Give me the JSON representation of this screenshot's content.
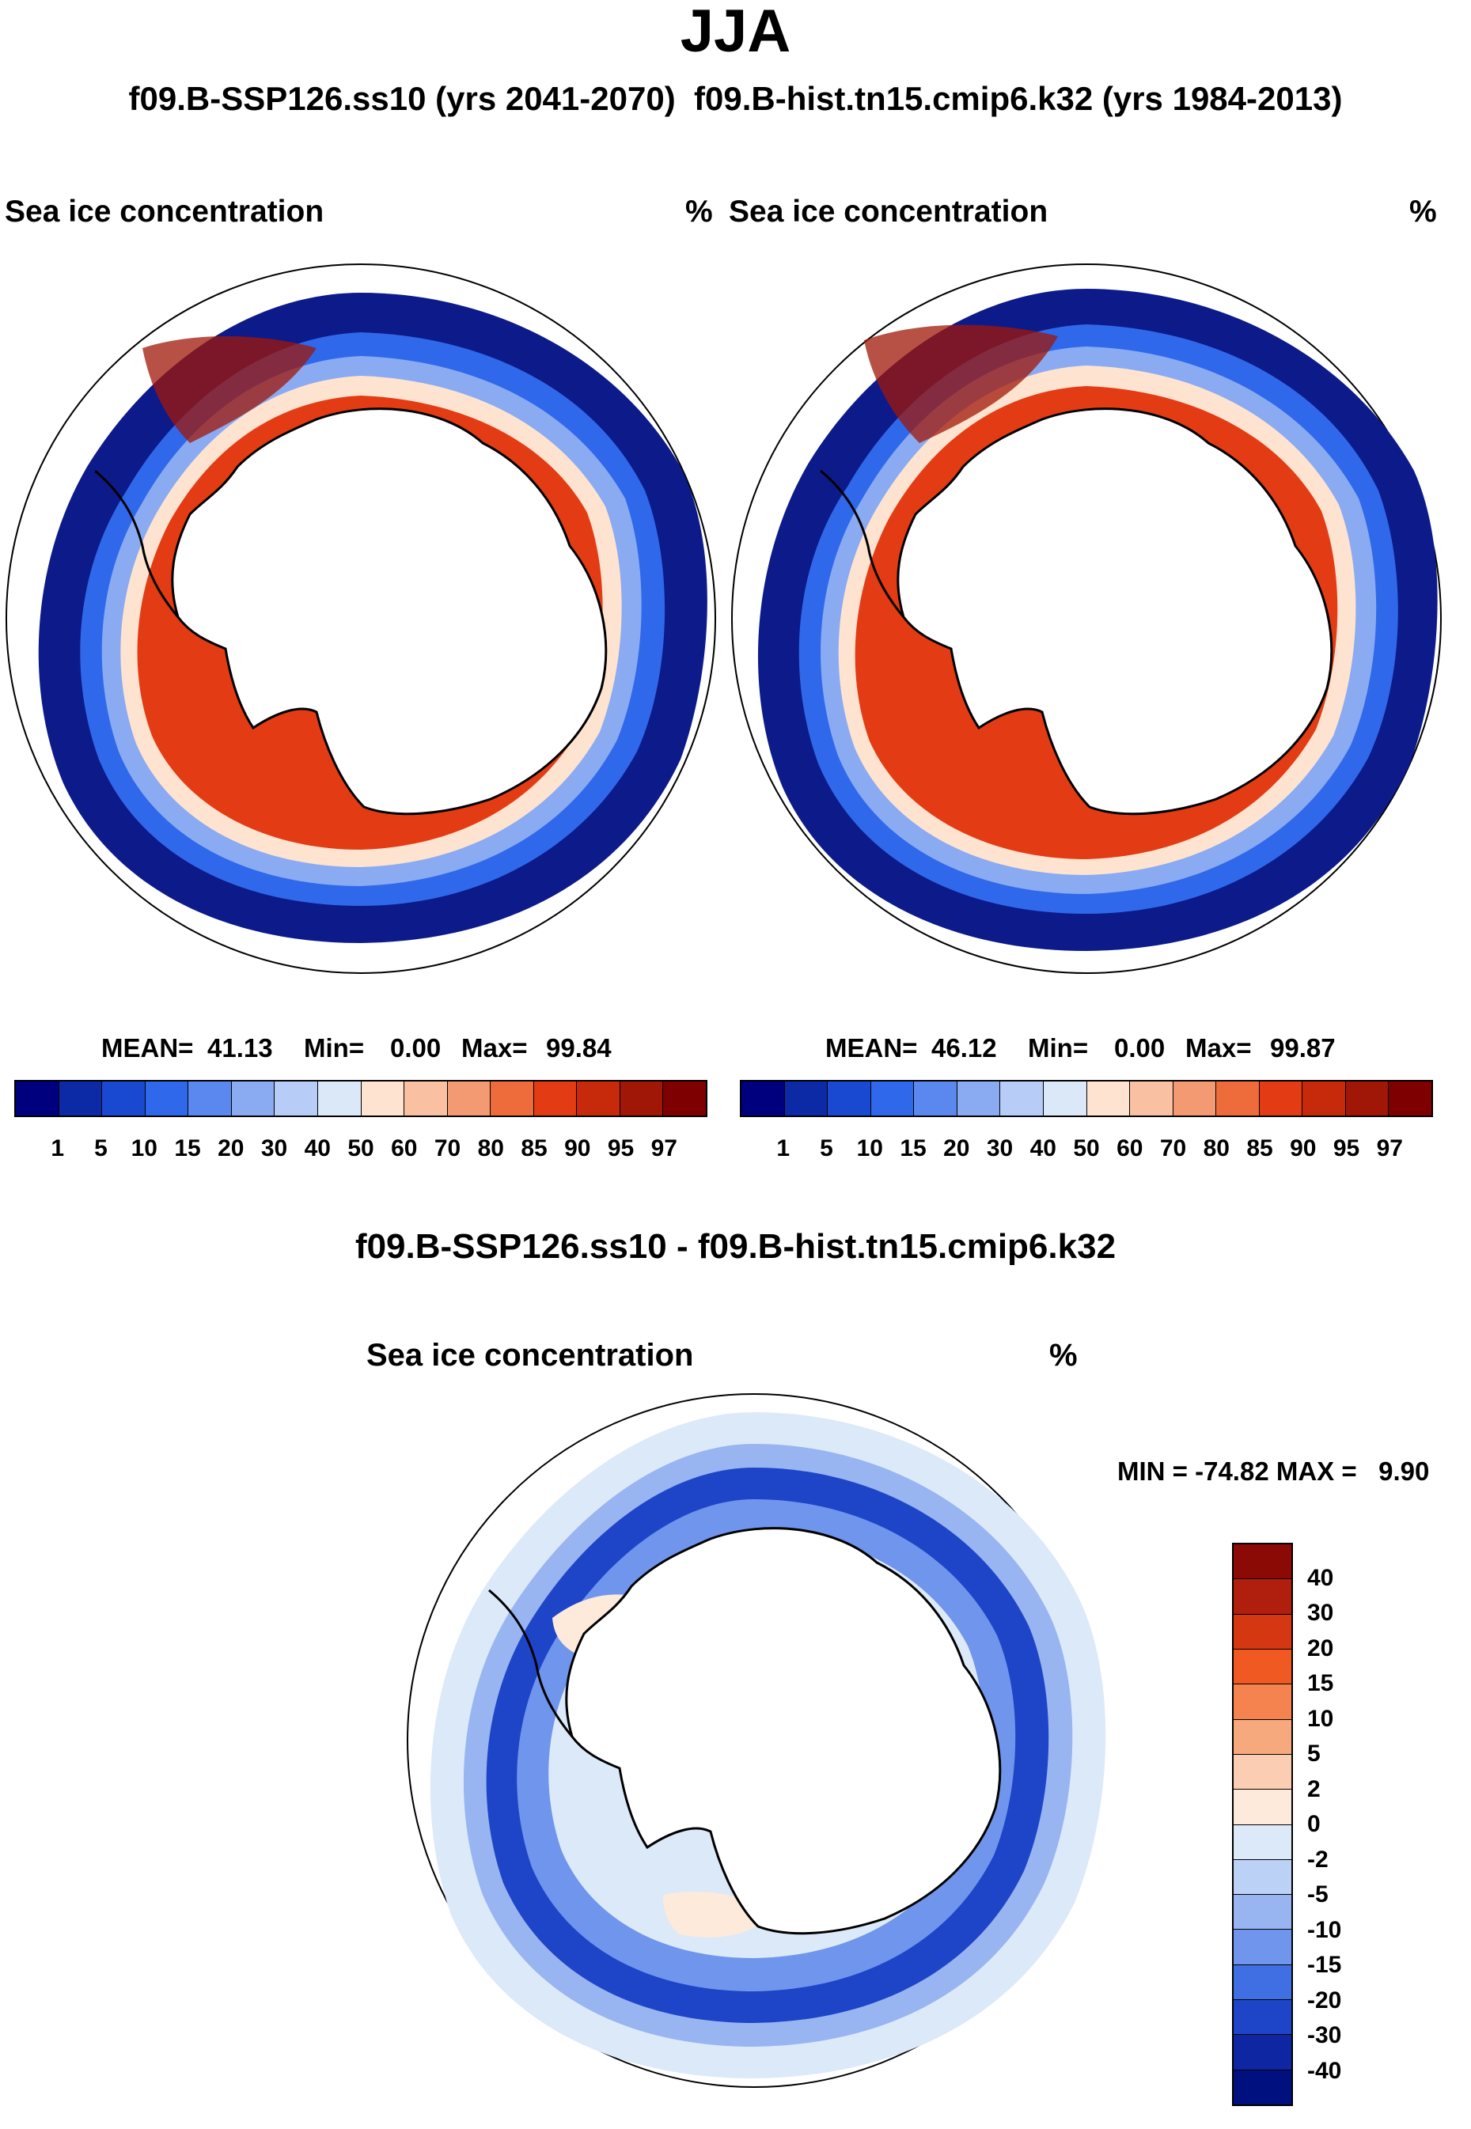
{
  "figure": {
    "season": "JJA",
    "subtitle": "f09.B-SSP126.ss10 (yrs 2041-2070)  f09.B-hist.tn15.cmip6.k32 (yrs 1984-2013)"
  },
  "chart_data": [
    {
      "type": "heatmap",
      "name": "case",
      "projection": "south-polar-stereographic",
      "title": "Sea ice concentration",
      "units": "%",
      "stats": {
        "mean_label": "MEAN=",
        "mean": "41.13",
        "min_label": "Min=",
        "min": "0.00",
        "max_label": "Max=",
        "max": "99.84"
      },
      "levels": [
        "1",
        "5",
        "10",
        "15",
        "20",
        "30",
        "40",
        "50",
        "60",
        "70",
        "80",
        "85",
        "90",
        "95",
        "97"
      ],
      "colors": [
        "#00007f",
        "#0d2aa6",
        "#1a49d1",
        "#2f68ea",
        "#5b88ee",
        "#8aaaf2",
        "#b7cdf7",
        "#dbe8f8",
        "#fde3d0",
        "#f9c0a1",
        "#f49a73",
        "#ee6b3c",
        "#e33c14",
        "#c72a0a",
        "#a01707",
        "#7f0000"
      ]
    },
    {
      "type": "heatmap",
      "name": "control",
      "projection": "south-polar-stereographic",
      "title": "Sea ice concentration",
      "units": "%",
      "stats": {
        "mean_label": "MEAN=",
        "mean": "46.12",
        "min_label": "Min=",
        "min": "0.00",
        "max_label": "Max=",
        "max": "99.87"
      },
      "levels": [
        "1",
        "5",
        "10",
        "15",
        "20",
        "30",
        "40",
        "50",
        "60",
        "70",
        "80",
        "85",
        "90",
        "95",
        "97"
      ],
      "colors": [
        "#00007f",
        "#0d2aa6",
        "#1a49d1",
        "#2f68ea",
        "#5b88ee",
        "#8aaaf2",
        "#b7cdf7",
        "#dbe8f8",
        "#fde3d0",
        "#f9c0a1",
        "#f49a73",
        "#ee6b3c",
        "#e33c14",
        "#c72a0a",
        "#a01707",
        "#7f0000"
      ]
    },
    {
      "type": "heatmap",
      "name": "difference",
      "projection": "south-polar-stereographic",
      "heading": "f09.B-SSP126.ss10 - f09.B-hist.tn15.cmip6.k32",
      "title": "Sea ice concentration",
      "units": "%",
      "stats": {
        "text": "MIN = -74.82 MAX =   9.90",
        "min": "-74.82",
        "max": "9.90"
      },
      "levels": [
        "40",
        "30",
        "20",
        "15",
        "10",
        "5",
        "2",
        "0",
        "-2",
        "-5",
        "-10",
        "-15",
        "-20",
        "-30",
        "-40"
      ],
      "colors": [
        "#8b0a05",
        "#b01e0d",
        "#d63713",
        "#f05a22",
        "#f5834f",
        "#f7a97e",
        "#fbcdb3",
        "#fdeadb",
        "#dce9f8",
        "#bcd1f6",
        "#98b5f1",
        "#6f95ec",
        "#3f6fe3",
        "#1e45c8",
        "#0f26a3",
        "#00117f"
      ]
    }
  ]
}
